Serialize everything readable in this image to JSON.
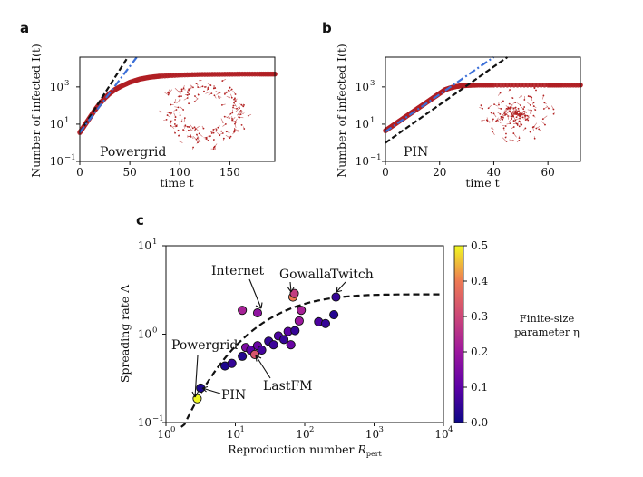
{
  "panels": {
    "a": "a",
    "b": "b",
    "c": "c"
  },
  "chart_data": [
    {
      "id": "a",
      "type": "scatter",
      "title": "Powergrid",
      "xlabel": "time t",
      "ylabel": "Number of infected I(t)",
      "xlim": [
        0,
        195
      ],
      "ylim_log10": [
        -1,
        4.6
      ],
      "xticks": [
        0,
        50,
        100,
        150
      ],
      "xtick_labels": [
        "0",
        "50",
        "100",
        "150"
      ],
      "yticks_log10": [
        -1,
        1,
        3
      ],
      "ytick_labels": [
        "10",
        "10",
        "10"
      ],
      "ytick_exponents": [
        "−1",
        "1",
        "3"
      ],
      "series": [
        {
          "name": "simulated I(t)",
          "style": "red-markers",
          "x": [
            0,
            5,
            10,
            15,
            20,
            25,
            30,
            35,
            40,
            50,
            60,
            70,
            80,
            100,
            120,
            140,
            160,
            180,
            195
          ],
          "y_log10": [
            0.55,
            0.95,
            1.35,
            1.75,
            2.1,
            2.4,
            2.65,
            2.85,
            3.0,
            3.25,
            3.42,
            3.52,
            3.58,
            3.64,
            3.67,
            3.68,
            3.69,
            3.69,
            3.69
          ]
        },
        {
          "name": "fit black dashed",
          "style": "black-dash",
          "x": [
            0,
            48
          ],
          "y_log10": [
            0.55,
            4.6
          ]
        },
        {
          "name": "fit blue dash-dot",
          "style": "blue-dashdot",
          "x": [
            0,
            57
          ],
          "y_log10": [
            0.55,
            4.6
          ]
        }
      ]
    },
    {
      "id": "b",
      "type": "scatter",
      "title": "PIN",
      "xlabel": "time t",
      "ylabel": "Number of infected I(t)",
      "xlim": [
        0,
        72
      ],
      "ylim_log10": [
        -1,
        4.6
      ],
      "xticks": [
        0,
        20,
        40,
        60
      ],
      "xtick_labels": [
        "0",
        "20",
        "40",
        "60"
      ],
      "yticks_log10": [
        -1,
        1,
        3
      ],
      "ytick_labels": [
        "10",
        "10",
        "10"
      ],
      "ytick_exponents": [
        "−1",
        "1",
        "3"
      ],
      "series": [
        {
          "name": "simulated I(t)",
          "style": "red-markers",
          "x": [
            0,
            2,
            4,
            6,
            8,
            10,
            12,
            14,
            16,
            18,
            20,
            22,
            24,
            26,
            28,
            30,
            34,
            40,
            50,
            60,
            65,
            72
          ],
          "y_log10": [
            0.65,
            0.85,
            1.05,
            1.25,
            1.45,
            1.65,
            1.85,
            2.05,
            2.25,
            2.45,
            2.65,
            2.85,
            2.95,
            3.02,
            3.06,
            3.08,
            3.1,
            3.1,
            3.1,
            3.1,
            3.1,
            3.1
          ]
        },
        {
          "name": "fit black dashed",
          "style": "black-dash",
          "x": [
            0,
            45
          ],
          "y_log10": [
            0.0,
            4.6
          ]
        },
        {
          "name": "fit blue dash-dot",
          "style": "blue-dashdot",
          "x": [
            0,
            40
          ],
          "y_log10": [
            0.6,
            4.6
          ]
        }
      ]
    },
    {
      "id": "c",
      "type": "scatter",
      "xlabel": "Reproduction number R_pert",
      "ylabel": "Spreading rate Λ",
      "xlim_log10": [
        0,
        4
      ],
      "ylim_log10": [
        -1,
        1
      ],
      "xticks_log10": [
        0,
        1,
        2,
        3,
        4
      ],
      "xtick_labels": [
        "10",
        "10",
        "10",
        "10",
        "10"
      ],
      "xtick_exponents": [
        "0",
        "1",
        "2",
        "3",
        "4"
      ],
      "yticks_log10": [
        -1,
        0,
        1
      ],
      "ytick_labels": [
        "10",
        "10",
        "10"
      ],
      "ytick_exponents": [
        "−1",
        "0",
        "1"
      ],
      "curve": {
        "name": "theory",
        "style": "black-dash",
        "x_log10_start": 0.22,
        "x_log10_end": 4,
        "y_log10_end": 0.45
      },
      "points": [
        {
          "x_log10": 0.45,
          "y_log10": -0.73,
          "eta": 0.5
        },
        {
          "x_log10": 0.5,
          "y_log10": -0.61,
          "eta": 0.02
        },
        {
          "x_log10": 0.85,
          "y_log10": -0.36,
          "eta": 0.02
        },
        {
          "x_log10": 0.95,
          "y_log10": -0.33,
          "eta": 0.05
        },
        {
          "x_log10": 1.1,
          "y_log10": -0.25,
          "eta": 0.03
        },
        {
          "x_log10": 1.15,
          "y_log10": -0.15,
          "eta": 0.15
        },
        {
          "x_log10": 1.22,
          "y_log10": -0.18,
          "eta": 0.1
        },
        {
          "x_log10": 1.28,
          "y_log10": -0.23,
          "eta": 0.33
        },
        {
          "x_log10": 1.32,
          "y_log10": -0.13,
          "eta": 0.12
        },
        {
          "x_log10": 1.38,
          "y_log10": -0.18,
          "eta": 0.07
        },
        {
          "x_log10": 1.48,
          "y_log10": -0.08,
          "eta": 0.05
        },
        {
          "x_log10": 1.55,
          "y_log10": -0.12,
          "eta": 0.06
        },
        {
          "x_log10": 1.62,
          "y_log10": -0.02,
          "eta": 0.08
        },
        {
          "x_log10": 1.7,
          "y_log10": -0.06,
          "eta": 0.05
        },
        {
          "x_log10": 1.76,
          "y_log10": 0.03,
          "eta": 0.1
        },
        {
          "x_log10": 1.8,
          "y_log10": -0.12,
          "eta": 0.12
        },
        {
          "x_log10": 1.86,
          "y_log10": 0.04,
          "eta": 0.05
        },
        {
          "x_log10": 1.92,
          "y_log10": 0.15,
          "eta": 0.2
        },
        {
          "x_log10": 1.95,
          "y_log10": 0.27,
          "eta": 0.22
        },
        {
          "x_log10": 2.2,
          "y_log10": 0.14,
          "eta": 0.08
        },
        {
          "x_log10": 2.3,
          "y_log10": 0.12,
          "eta": 0.05
        },
        {
          "x_log10": 2.42,
          "y_log10": 0.22,
          "eta": 0.03
        },
        {
          "x_log10": 2.45,
          "y_log10": 0.42,
          "eta": 0.05
        },
        {
          "x_log10": 1.1,
          "y_log10": 0.27,
          "eta": 0.22
        },
        {
          "x_log10": 1.32,
          "y_log10": 0.24,
          "eta": 0.18
        },
        {
          "x_log10": 1.83,
          "y_log10": 0.42,
          "eta": 0.4
        },
        {
          "x_log10": 1.85,
          "y_log10": 0.46,
          "eta": 0.28
        }
      ],
      "annotations": [
        {
          "text": "Internet"
        },
        {
          "text": "Gowalla"
        },
        {
          "text": "Twitch"
        },
        {
          "text": "Powergrid"
        },
        {
          "text": "PIN"
        },
        {
          "text": "LastFM"
        }
      ],
      "colorbar": {
        "label_line1": "Finite-size",
        "label_line2": "parameter η",
        "ticks": [
          "0.0",
          "0.1",
          "0.2",
          "0.3",
          "0.4",
          "0.5"
        ],
        "range": [
          0,
          0.5
        ]
      }
    }
  ]
}
